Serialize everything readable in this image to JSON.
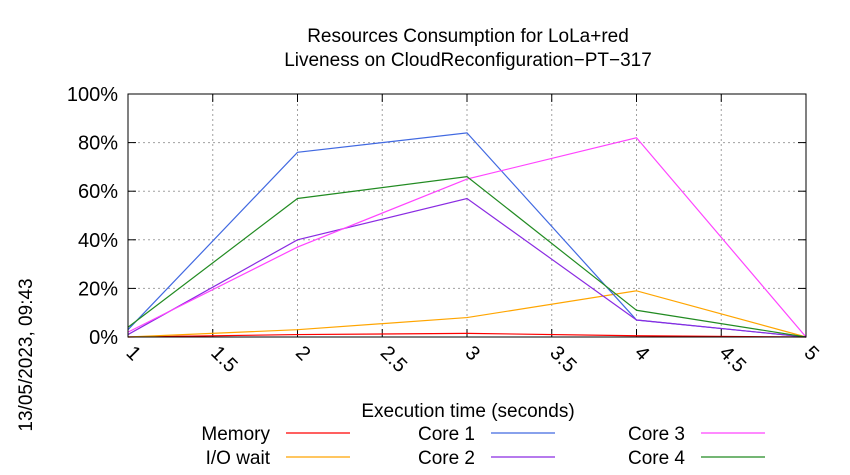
{
  "chart_data": {
    "type": "line",
    "title": "Resources Consumption for LoLa+red",
    "subtitle": "Liveness on CloudReconfiguration−PT−317",
    "xlabel": "Execution time (seconds)",
    "ylabel": "",
    "x": [
      1,
      2,
      3,
      4,
      5
    ],
    "xlim": [
      1,
      5
    ],
    "ylim": [
      0,
      100
    ],
    "x_ticks": [
      "1",
      "1.5",
      "2",
      "2.5",
      "3",
      "3.5",
      "4",
      "4.5",
      "5"
    ],
    "x_tick_values": [
      1,
      1.5,
      2,
      2.5,
      3,
      3.5,
      4,
      4.5,
      5
    ],
    "y_ticks": [
      "0%",
      "20%",
      "40%",
      "60%",
      "80%",
      "100%"
    ],
    "y_tick_values": [
      0,
      20,
      40,
      60,
      80,
      100
    ],
    "grid": true,
    "legend_position": "bottom",
    "series": [
      {
        "name": "Memory",
        "color": "#ff0000",
        "values": [
          0,
          1,
          1.5,
          0.5,
          0
        ]
      },
      {
        "name": "I/O wait",
        "color": "#ffa500",
        "values": [
          0,
          3,
          8,
          19,
          0
        ]
      },
      {
        "name": "Core 1",
        "color": "#4169e1",
        "values": [
          3,
          76,
          84,
          7,
          0
        ]
      },
      {
        "name": "Core 2",
        "color": "#8a2be2",
        "values": [
          1,
          40,
          57,
          7,
          0
        ]
      },
      {
        "name": "Core 3",
        "color": "#ff44ff",
        "values": [
          2,
          37,
          65,
          82,
          0
        ]
      },
      {
        "name": "Core 4",
        "color": "#228b22",
        "values": [
          4,
          57,
          66,
          11,
          0
        ]
      }
    ]
  },
  "timestamp": "13/05/2023, 09:43"
}
